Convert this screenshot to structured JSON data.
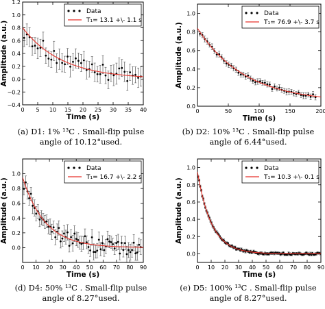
{
  "chart_data": [
    {
      "type": "scatter",
      "panel_id": "a",
      "caption": [
        "(a) D1: 1% ¹³C . Small-flip pulse",
        "angle of 10.12°used."
      ],
      "xlabel": "Time (s)",
      "ylabel": "Amplitude (a.u.)",
      "xlim": [
        0,
        40
      ],
      "ylim": [
        -0.4,
        1.2
      ],
      "xticks": [
        0,
        5,
        10,
        15,
        20,
        25,
        30,
        35,
        40
      ],
      "yticks": [
        -0.4,
        -0.2,
        0.0,
        0.2,
        0.4,
        0.6,
        0.8,
        1.0,
        1.2
      ],
      "ytick_labels": [
        "−0.4",
        "−0.2",
        "0.0",
        "0.2",
        "0.4",
        "0.6",
        "0.8",
        "1.0",
        "1.2"
      ],
      "grid": false,
      "legend_position": "top-right",
      "series": [
        {
          "name": "Data",
          "kind": "errorbar",
          "color": "#000000",
          "x_start": 0.5,
          "x_step": 0.9,
          "n": 44,
          "tau": 13.1,
          "y_inf": 0.0,
          "errorbar": 0.15,
          "noise": 0.13
        },
        {
          "name": "T₁= 13.1 +\\- 1.1 s",
          "kind": "fit",
          "color": "#e8322a",
          "a0": 0.8,
          "tau": 13.1,
          "y_inf": 0.0
        }
      ]
    },
    {
      "type": "scatter",
      "panel_id": "b",
      "caption": [
        "(b) D2: 10% ¹³C . Small-flip pulse",
        "angle of 6.44°used."
      ],
      "xlabel": "Time (s)",
      "ylabel": "Amplitude (a.u.)",
      "xlim": [
        0,
        200
      ],
      "ylim": [
        0.0,
        1.1
      ],
      "xticks": [
        0,
        50,
        100,
        150,
        200
      ],
      "yticks": [
        0.0,
        0.2,
        0.4,
        0.6,
        0.8,
        1.0
      ],
      "ytick_labels": [
        "0.0",
        "0.2",
        "0.4",
        "0.6",
        "0.8",
        "1.0"
      ],
      "grid": false,
      "legend_position": "top-right",
      "series": [
        {
          "name": "Data",
          "kind": "errorbar",
          "color": "#000000",
          "x_start": 4,
          "x_step": 3.9,
          "n": 49,
          "tau": 76.9,
          "y_inf": 0.04,
          "errorbar": 0.03,
          "noise": 0.02
        },
        {
          "name": "T₁= 76.9 +\\- 3.7 s",
          "kind": "fit",
          "color": "#e8322a",
          "a0": 0.84,
          "tau": 76.9,
          "y_inf": 0.04
        }
      ]
    },
    {
      "type": "scatter",
      "panel_id": "d",
      "caption": [
        "(d) D4: 50% ¹³C . Small-flip pulse",
        "angle of 8.27°used."
      ],
      "xlabel": "Time (s)",
      "ylabel": "Amplitude (a.u.)",
      "xlim": [
        0,
        90
      ],
      "ylim": [
        -0.2,
        1.2
      ],
      "xticks": [
        0,
        10,
        20,
        30,
        40,
        50,
        60,
        70,
        80,
        90
      ],
      "yticks": [
        0.0,
        0.2,
        0.4,
        0.6,
        0.8,
        1.0
      ],
      "ytick_labels": [
        "0.0",
        "0.2",
        "0.4",
        "0.6",
        "0.8",
        "1.0"
      ],
      "grid": false,
      "legend_position": "top-right",
      "series": [
        {
          "name": "Data",
          "kind": "errorbar",
          "color": "#000000",
          "x_start": 1,
          "x_step": 1.3,
          "n": 68,
          "tau": 16.7,
          "y_inf": 0.0,
          "errorbar": 0.1,
          "noise": 0.1
        },
        {
          "name": "T₁= 16.7 +\\- 2.2 s",
          "kind": "fit",
          "color": "#e8322a",
          "a0": 0.95,
          "tau": 16.7,
          "y_inf": 0.0
        }
      ]
    },
    {
      "type": "scatter",
      "panel_id": "e",
      "caption": [
        "(e) D5: 100% ¹³C . Small-flip pulse",
        "angle of 8.27°used."
      ],
      "xlabel": "Time (s)",
      "ylabel": "Amplitude (a.u.)",
      "xlim": [
        0,
        90
      ],
      "ylim": [
        -0.1,
        1.1
      ],
      "xticks": [
        0,
        10,
        20,
        30,
        40,
        50,
        60,
        70,
        80,
        90
      ],
      "yticks": [
        0.0,
        0.2,
        0.4,
        0.6,
        0.8,
        1.0
      ],
      "ytick_labels": [
        "0.0",
        "0.2",
        "0.4",
        "0.6",
        "0.8",
        "1.0"
      ],
      "grid": false,
      "legend_position": "top-right",
      "series": [
        {
          "name": "Data",
          "kind": "errorbar",
          "color": "#000000",
          "x_start": 0.5,
          "x_step": 0.75,
          "n": 120,
          "tau": 10.3,
          "y_inf": 0.0,
          "errorbar": 0.015,
          "noise": 0.012
        },
        {
          "name": "T₁= 10.3 +\\- 0.1 s",
          "kind": "fit",
          "color": "#e8322a",
          "a0": 0.95,
          "tau": 10.3,
          "y_inf": 0.0
        }
      ]
    }
  ]
}
